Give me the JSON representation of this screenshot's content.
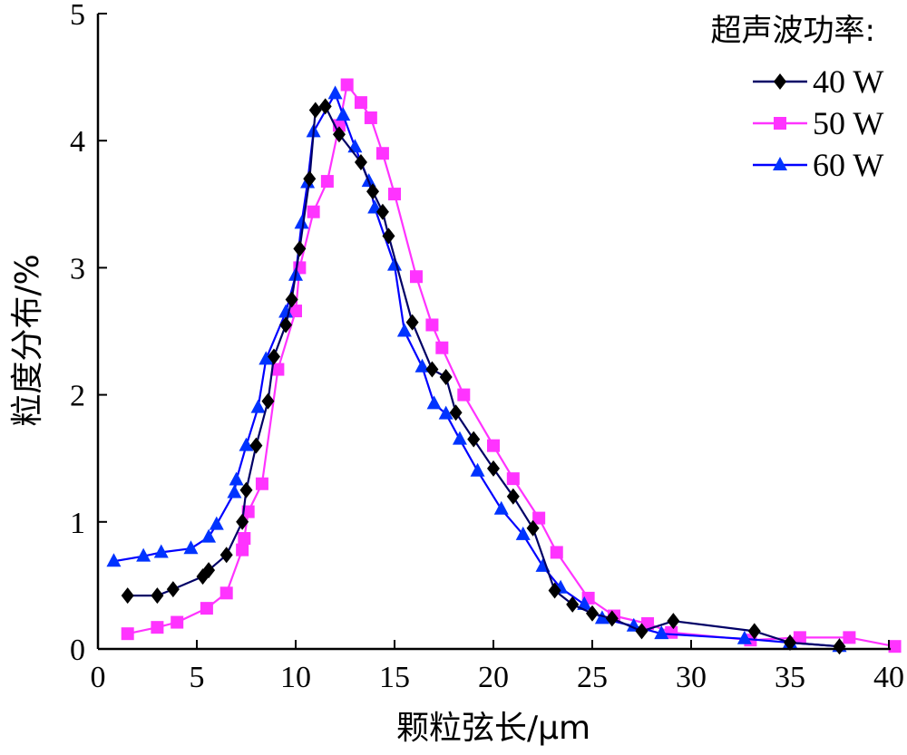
{
  "chart_data": {
    "type": "line",
    "title": "",
    "xlabel": "颗粒弦长/μm",
    "ylabel": "粒度分布/%",
    "xlim": [
      0,
      40
    ],
    "ylim": [
      0,
      5
    ],
    "xticks": [
      "0",
      "5",
      "10",
      "15",
      "20",
      "25",
      "30",
      "35",
      "40"
    ],
    "yticks": [
      "0",
      "1",
      "2",
      "3",
      "4",
      "5"
    ],
    "grid": false,
    "legend": {
      "title": "超声波功率:",
      "position": "top-right"
    },
    "series": [
      {
        "name": "40 W",
        "color": "#000000",
        "line_color": "#000066",
        "marker": "diamond",
        "points": [
          [
            1.5,
            0.42
          ],
          [
            3.0,
            0.42
          ],
          [
            3.8,
            0.47
          ],
          [
            5.3,
            0.57
          ],
          [
            5.6,
            0.62
          ],
          [
            6.5,
            0.74
          ],
          [
            7.3,
            1.0
          ],
          [
            7.5,
            1.25
          ],
          [
            8.0,
            1.6
          ],
          [
            8.6,
            1.95
          ],
          [
            8.9,
            2.3
          ],
          [
            9.5,
            2.55
          ],
          [
            9.8,
            2.75
          ],
          [
            10.2,
            3.15
          ],
          [
            10.7,
            3.7
          ],
          [
            11.0,
            4.24
          ],
          [
            11.5,
            4.27
          ],
          [
            12.2,
            4.05
          ],
          [
            13.3,
            3.83
          ],
          [
            13.9,
            3.6
          ],
          [
            14.4,
            3.44
          ],
          [
            14.7,
            3.25
          ],
          [
            15.9,
            2.57
          ],
          [
            16.9,
            2.2
          ],
          [
            17.6,
            2.14
          ],
          [
            18.1,
            1.86
          ],
          [
            19.0,
            1.65
          ],
          [
            20.0,
            1.42
          ],
          [
            21.0,
            1.2
          ],
          [
            22.0,
            0.95
          ],
          [
            23.1,
            0.46
          ],
          [
            24.0,
            0.35
          ],
          [
            25.0,
            0.28
          ],
          [
            26.0,
            0.24
          ],
          [
            27.5,
            0.14
          ],
          [
            29.1,
            0.22
          ],
          [
            33.2,
            0.14
          ],
          [
            35.0,
            0.05
          ],
          [
            37.5,
            0.02
          ]
        ]
      },
      {
        "name": "50 W",
        "color": "#ff33ff",
        "line_color": "#ff33ff",
        "marker": "square",
        "points": [
          [
            1.5,
            0.12
          ],
          [
            3.0,
            0.17
          ],
          [
            4.0,
            0.21
          ],
          [
            5.5,
            0.32
          ],
          [
            6.5,
            0.44
          ],
          [
            7.3,
            0.78
          ],
          [
            7.4,
            0.87
          ],
          [
            7.6,
            1.08
          ],
          [
            8.3,
            1.3
          ],
          [
            9.1,
            2.2
          ],
          [
            10.0,
            2.66
          ],
          [
            10.2,
            3.0
          ],
          [
            10.9,
            3.44
          ],
          [
            11.6,
            3.68
          ],
          [
            12.2,
            4.12
          ],
          [
            12.6,
            4.44
          ],
          [
            13.3,
            4.3
          ],
          [
            13.8,
            4.18
          ],
          [
            14.4,
            3.9
          ],
          [
            15.0,
            3.58
          ],
          [
            16.1,
            2.93
          ],
          [
            16.9,
            2.55
          ],
          [
            17.4,
            2.37
          ],
          [
            18.5,
            2.0
          ],
          [
            20.0,
            1.6
          ],
          [
            21.0,
            1.34
          ],
          [
            22.3,
            1.03
          ],
          [
            23.2,
            0.76
          ],
          [
            24.8,
            0.4
          ],
          [
            26.1,
            0.26
          ],
          [
            27.8,
            0.2
          ],
          [
            29.0,
            0.13
          ],
          [
            33.0,
            0.07
          ],
          [
            35.5,
            0.09
          ],
          [
            38.0,
            0.09
          ],
          [
            40.3,
            0.02
          ]
        ]
      },
      {
        "name": "60 W",
        "color": "#0033ff",
        "line_color": "#0000ff",
        "marker": "triangle",
        "points": [
          [
            0.8,
            0.69
          ],
          [
            2.3,
            0.73
          ],
          [
            3.2,
            0.76
          ],
          [
            4.7,
            0.79
          ],
          [
            5.6,
            0.88
          ],
          [
            6.0,
            0.98
          ],
          [
            6.9,
            1.23
          ],
          [
            7.0,
            1.33
          ],
          [
            7.5,
            1.6
          ],
          [
            8.1,
            1.9
          ],
          [
            8.5,
            2.28
          ],
          [
            9.5,
            2.65
          ],
          [
            10.0,
            2.94
          ],
          [
            10.3,
            3.35
          ],
          [
            10.6,
            3.67
          ],
          [
            10.9,
            4.07
          ],
          [
            12.0,
            4.37
          ],
          [
            12.4,
            4.2
          ],
          [
            13.0,
            3.95
          ],
          [
            13.7,
            3.68
          ],
          [
            14.0,
            3.47
          ],
          [
            15.0,
            3.02
          ],
          [
            15.5,
            2.5
          ],
          [
            16.4,
            2.22
          ],
          [
            17.0,
            1.93
          ],
          [
            17.6,
            1.85
          ],
          [
            18.3,
            1.65
          ],
          [
            19.2,
            1.4
          ],
          [
            20.4,
            1.1
          ],
          [
            21.5,
            0.9
          ],
          [
            22.5,
            0.65
          ],
          [
            23.4,
            0.48
          ],
          [
            24.6,
            0.35
          ],
          [
            25.5,
            0.24
          ],
          [
            27.1,
            0.18
          ],
          [
            28.5,
            0.12
          ],
          [
            32.7,
            0.08
          ],
          [
            35.0,
            0.05
          ],
          [
            37.5,
            0.02
          ]
        ]
      }
    ]
  }
}
